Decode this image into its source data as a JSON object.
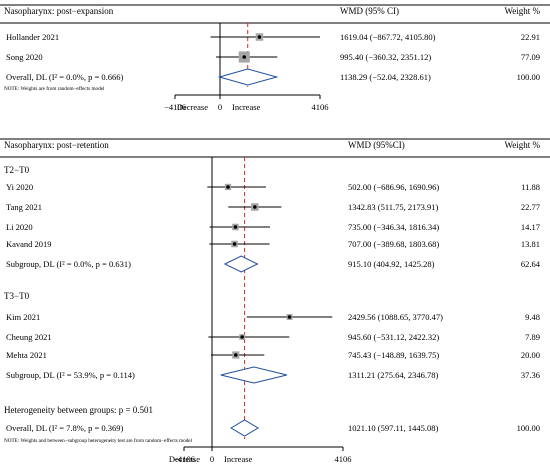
{
  "colors": {
    "line": "#000000",
    "null_line": "#000000",
    "overall_line": "#d62728",
    "diamond_stroke": "#1f4e9c",
    "weight_box": "#a6a6a6"
  },
  "chart_data": [
    {
      "type": "forest",
      "title": "Nasopharynx: post−expansion",
      "col_effect": "WMD (95% CI)",
      "col_weight": "Weight %",
      "xlim": [
        -4106,
        4106
      ],
      "tick_labels": [
        "−4106",
        "0",
        "4106"
      ],
      "decrease_label": "Decrease",
      "increase_label": "Increase",
      "overall_value": 1138.29,
      "rows": [
        {
          "kind": "study",
          "label": "Hollander 2021",
          "est": 1619.04,
          "lo": -867.72,
          "hi": 4105.8,
          "ci_text": "1619.04 (−867.72, 4105.80)",
          "weight": 22.91,
          "weight_text": "22.91"
        },
        {
          "kind": "study",
          "label": "Song 2020",
          "est": 995.4,
          "lo": -360.32,
          "hi": 2351.12,
          "ci_text": "995.40 (−360.32, 2351.12)",
          "weight": 77.09,
          "weight_text": "77.09"
        },
        {
          "kind": "overall",
          "label": "Overall, DL (I² = 0.0%, p = 0.666)",
          "est": 1138.29,
          "lo": -52.04,
          "hi": 2328.61,
          "ci_text": "1138.29 (−52.04, 2328.61)",
          "weight": 100.0,
          "weight_text": "100.00"
        }
      ],
      "note": "NOTE: Weights are from random−effects model"
    },
    {
      "type": "forest",
      "title": "Nasopharynx: post−retention",
      "col_effect": "WMD (95%CI)",
      "col_weight": "Weight %",
      "xlim": [
        -4106,
        4106
      ],
      "tick_labels": [
        "−4106",
        "0",
        "4106"
      ],
      "decrease_label": "Decrease",
      "increase_label": "Increase",
      "overall_value": 1021.1,
      "rows": [
        {
          "kind": "header",
          "label": "T2−T0"
        },
        {
          "kind": "study",
          "label": "Yi 2020",
          "est": 502.0,
          "lo": -686.96,
          "hi": 1690.96,
          "ci_text": "502.00 (−686.96, 1690.96)",
          "weight": 11.88,
          "weight_text": "11.88"
        },
        {
          "kind": "study",
          "label": "Tang 2021",
          "est": 1342.83,
          "lo": 511.75,
          "hi": 2173.91,
          "ci_text": "1342.83 (511.75, 2173.91)",
          "weight": 22.77,
          "weight_text": "22.77"
        },
        {
          "kind": "study",
          "label": "Li 2020",
          "est": 735.0,
          "lo": -346.34,
          "hi": 1816.34,
          "ci_text": "735.00 (−346.34, 1816.34)",
          "weight": 14.17,
          "weight_text": "14.17"
        },
        {
          "kind": "study",
          "label": "Kavand 2019",
          "est": 707.0,
          "lo": -389.68,
          "hi": 1803.68,
          "ci_text": "707.00 (−389.68, 1803.68)",
          "weight": 13.81,
          "weight_text": "13.81"
        },
        {
          "kind": "subgroup",
          "label": "Subgroup, DL (I² = 0.0%, p = 0.631)",
          "est": 915.1,
          "lo": 404.92,
          "hi": 1425.28,
          "ci_text": "915.10 (404.92, 1425.28)",
          "weight": 62.64,
          "weight_text": "62.64"
        },
        {
          "kind": "header",
          "label": "T3−T0"
        },
        {
          "kind": "study",
          "label": "Kim 2021",
          "est": 2429.56,
          "lo": 1088.65,
          "hi": 3770.47,
          "ci_text": "2429.56 (1088.65, 3770.47)",
          "weight": 9.48,
          "weight_text": "9.48"
        },
        {
          "kind": "study",
          "label": "Cheung 2021",
          "est": 945.6,
          "lo": -531.12,
          "hi": 2422.32,
          "ci_text": "945.60 (−531.12, 2422.32)",
          "weight": 7.89,
          "weight_text": "7.89"
        },
        {
          "kind": "study",
          "label": "Mehta 2021",
          "est": 745.43,
          "lo": -148.89,
          "hi": 1639.75,
          "ci_text": "745.43 (−148.89, 1639.75)",
          "weight": 20.0,
          "weight_text": "20.00"
        },
        {
          "kind": "subgroup",
          "label": "Subgroup, DL (I² = 53.9%, p = 0.114)",
          "est": 1311.21,
          "lo": 275.64,
          "hi": 2346.78,
          "ci_text": "1311.21 (275.64, 2346.78)",
          "weight": 37.36,
          "weight_text": "37.36"
        },
        {
          "kind": "text",
          "label": "Heterogeneity between groups: p = 0.501"
        },
        {
          "kind": "overall",
          "label": "Overall, DL (I² = 7.8%, p = 0.369)",
          "est": 1021.1,
          "lo": 597.11,
          "hi": 1445.08,
          "ci_text": "1021.10 (597.11, 1445.08)",
          "weight": 100.0,
          "weight_text": "100.00"
        }
      ],
      "note": "NOTE: Weights and between−subgroup heterogeneity test are from random−effects model"
    }
  ]
}
